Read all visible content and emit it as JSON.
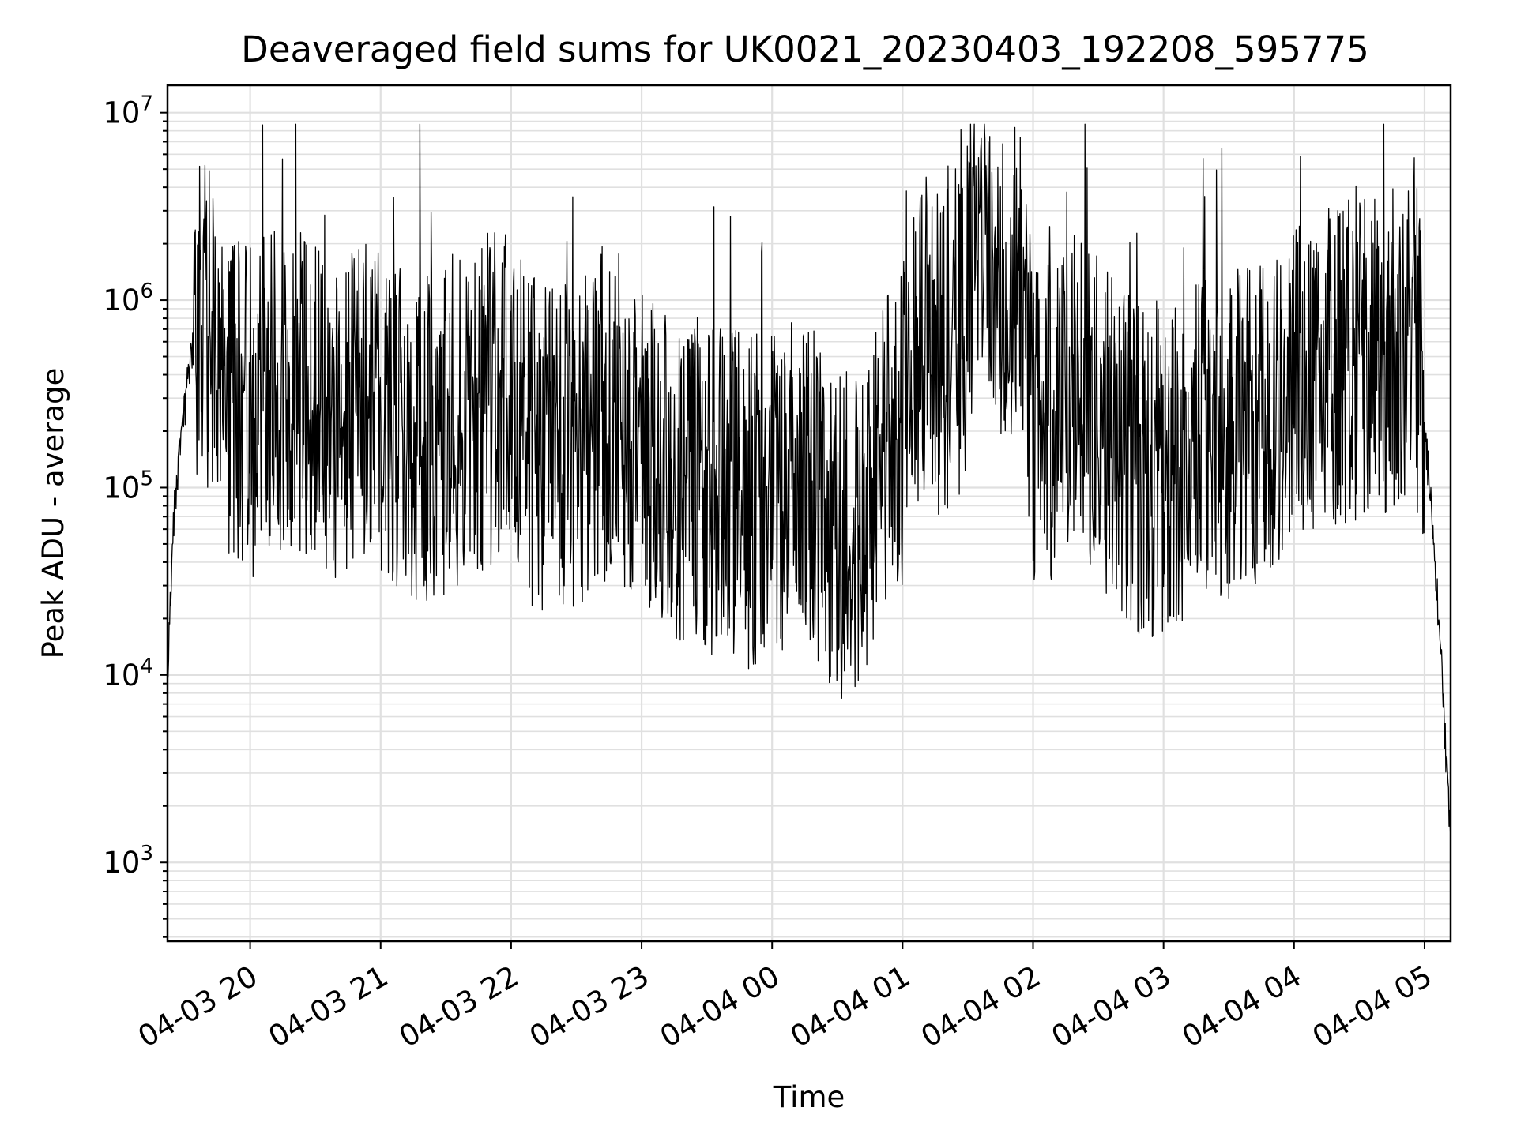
{
  "chart_data": {
    "type": "line",
    "title": "Deaveraged field sums for UK0021_20230403_192208_595775",
    "xlabel": "Time",
    "ylabel": "Peak ADU - average",
    "yscale": "log",
    "xlim": [
      "2023-04-03 19:22",
      "2023-04-04 05:12"
    ],
    "ylim": [
      380,
      14000000
    ],
    "grid": true,
    "legend": "none",
    "line_color": "#000000",
    "grid_color": "#e0e0e0",
    "x_ticks": [
      {
        "value": "2023-04-03 20:00",
        "label": "04-03 20"
      },
      {
        "value": "2023-04-03 21:00",
        "label": "04-03 21"
      },
      {
        "value": "2023-04-03 22:00",
        "label": "04-03 22"
      },
      {
        "value": "2023-04-03 23:00",
        "label": "04-03 23"
      },
      {
        "value": "2023-04-04 00:00",
        "label": "04-04 00"
      },
      {
        "value": "2023-04-04 01:00",
        "label": "04-04 01"
      },
      {
        "value": "2023-04-04 02:00",
        "label": "04-04 02"
      },
      {
        "value": "2023-04-04 03:00",
        "label": "04-04 03"
      },
      {
        "value": "2023-04-04 04:00",
        "label": "04-04 04"
      },
      {
        "value": "2023-04-04 05:00",
        "label": "04-04 05"
      }
    ],
    "y_ticks": [
      {
        "value": 1000,
        "base": "10",
        "exp": "3"
      },
      {
        "value": 10000,
        "base": "10",
        "exp": "4"
      },
      {
        "value": 100000,
        "base": "10",
        "exp": "5"
      },
      {
        "value": 1000000,
        "base": "10",
        "exp": "6"
      },
      {
        "value": 10000000,
        "base": "10",
        "exp": "7"
      }
    ],
    "series": [
      {
        "x": [
          "2023-04-03 19:22",
          "2023-04-03 19:25",
          "2023-04-03 19:28",
          "2023-04-03 19:32",
          "2023-04-03 19:36",
          "2023-04-03 19:40",
          "2023-04-03 19:45",
          "2023-04-03 19:50",
          "2023-04-03 19:55",
          "2023-04-03 20:00",
          "2023-04-03 20:10",
          "2023-04-03 20:20",
          "2023-04-03 20:30",
          "2023-04-03 20:40",
          "2023-04-03 20:50",
          "2023-04-03 21:00",
          "2023-04-03 21:10",
          "2023-04-03 21:20",
          "2023-04-03 21:30",
          "2023-04-03 21:40",
          "2023-04-03 21:50",
          "2023-04-03 22:00",
          "2023-04-03 22:10",
          "2023-04-03 22:20",
          "2023-04-03 22:30",
          "2023-04-03 22:40",
          "2023-04-03 22:50",
          "2023-04-03 23:00",
          "2023-04-03 23:10",
          "2023-04-03 23:20",
          "2023-04-03 23:30",
          "2023-04-03 23:40",
          "2023-04-03 23:50",
          "2023-04-04 00:00",
          "2023-04-04 00:10",
          "2023-04-04 00:20",
          "2023-04-04 00:30",
          "2023-04-04 00:40",
          "2023-04-04 00:50",
          "2023-04-04 01:00",
          "2023-04-04 01:10",
          "2023-04-04 01:20",
          "2023-04-04 01:30",
          "2023-04-04 01:40",
          "2023-04-04 01:50",
          "2023-04-04 01:56",
          "2023-04-04 02:00",
          "2023-04-04 02:10",
          "2023-04-04 02:20",
          "2023-04-04 02:30",
          "2023-04-04 02:40",
          "2023-04-04 02:50",
          "2023-04-04 03:00",
          "2023-04-04 03:10",
          "2023-04-04 03:20",
          "2023-04-04 03:30",
          "2023-04-04 03:40",
          "2023-04-04 03:50",
          "2023-04-04 04:00",
          "2023-04-04 04:10",
          "2023-04-04 04:20",
          "2023-04-04 04:30",
          "2023-04-04 04:40",
          "2023-04-04 04:50",
          "2023-04-04 04:55",
          "2023-04-04 05:00",
          "2023-04-04 05:04",
          "2023-04-04 05:08",
          "2023-04-04 05:12"
        ],
        "y": [
          11000,
          70000,
          180000,
          400000,
          900000,
          750000,
          650000,
          250000,
          280000,
          250000,
          300000,
          330000,
          300000,
          220000,
          260000,
          240000,
          200000,
          190000,
          210000,
          250000,
          300000,
          280000,
          180000,
          150000,
          170000,
          260000,
          230000,
          170000,
          130000,
          110000,
          100000,
          90000,
          80000,
          100000,
          110000,
          85000,
          50000,
          60000,
          150000,
          200000,
          600000,
          500000,
          900000,
          1200000,
          1100000,
          1600000,
          180000,
          200000,
          300000,
          260000,
          150000,
          120000,
          130000,
          150000,
          170000,
          180000,
          220000,
          260000,
          350000,
          420000,
          480000,
          520000,
          560000,
          650000,
          900000,
          200000,
          60000,
          10000,
          1200
        ]
      }
    ]
  }
}
